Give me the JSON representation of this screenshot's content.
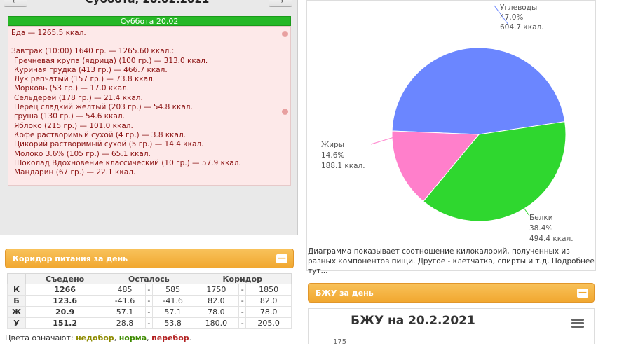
{
  "header": {
    "date_title": "Суббота, 20.02.2021",
    "prev_label": "←",
    "next_label": "→"
  },
  "diary": {
    "day_label": "Суббота 20.02",
    "food_total": "Еда — 1265.5 ккал.",
    "meal_title": "Завтрак (10:00) 1640 гр. — 1265.60 ккал.:",
    "items": [
      "Гречневая крупа (ядрица) (100 гр.) — 313.0 ккал.",
      "Куриная грудка (413 гр.) — 466.7 ккал.",
      "Лук репчатый (157 гр.) — 73.8 ккал.",
      "Морковь (53 гр.) — 17.0 ккал.",
      "Сельдерей (178 гр.) — 21.4 ккал.",
      "Перец сладкий жёлтый (203 гр.) — 54.8 ккал.",
      "груша (130 гр.) — 54.6 ккал.",
      "Яблоко (215 гр.) — 101.0 ккал.",
      "Кофе растворимый сухой (4 гр.) — 3.8 ккал.",
      "Цикорий растворимый сухой (5 гр.) — 14.4 ккал.",
      "Молоко 3.6% (105 гр.) — 65.1 ккал.",
      "Шоколад Вдохновение классический (10 гр.) — 57.9 ккал.",
      "Мандарин (67 гр.) — 22.1 ккал."
    ]
  },
  "corridor": {
    "title": "Коридор питания за день",
    "collapse": "—",
    "headers": [
      "Съедено",
      "Осталось",
      "Коридор"
    ],
    "rows": [
      {
        "label": "К",
        "eaten": "1266",
        "left_min": "485",
        "left_max": "585",
        "c_min": "1750",
        "c_max": "1850",
        "color": "green"
      },
      {
        "label": "Б",
        "eaten": "123.6",
        "left_min": "-41.6",
        "left_max": "-41.6",
        "c_min": "82.0",
        "c_max": "82.0",
        "color": "red"
      },
      {
        "label": "Ж",
        "eaten": "20.9",
        "left_min": "57.1",
        "left_max": "57.1",
        "c_min": "78.0",
        "c_max": "78.0",
        "color": "olive"
      },
      {
        "label": "У",
        "eaten": "151.2",
        "left_min": "28.8",
        "left_max": "53.8",
        "c_min": "180.0",
        "c_max": "205.0",
        "color": "olive"
      }
    ],
    "dash": "-",
    "legend_prefix": "Цвета означают:",
    "legend_under": "недобор",
    "legend_norm": "норма",
    "legend_over": "перебор",
    "legend_sep": ",",
    "legend_end": "."
  },
  "pie": {
    "caption": "Диаграмма показывает соотношение килокалорий, полученных из разных компонентов пищи. Другое - клетчатка, спирты и т.д. Подробнее тут...",
    "slices": [
      {
        "name": "Углеводы",
        "pct": "47.0%",
        "kcal": "604.7 ккал.",
        "value": 47.0,
        "color": "#6b86ff"
      },
      {
        "name": "Белки",
        "pct": "38.4%",
        "kcal": "494.4 ккал.",
        "value": 38.4,
        "color": "#2fd72f"
      },
      {
        "name": "Жиры",
        "pct": "14.6%",
        "kcal": "188.1 ккал.",
        "value": 14.6,
        "color": "#ff7fcb"
      }
    ]
  },
  "bju": {
    "panel_title": "БЖУ за день",
    "collapse": "—",
    "chart_title": "БЖУ на 20.2.2021",
    "y_tick_top": "175"
  }
}
